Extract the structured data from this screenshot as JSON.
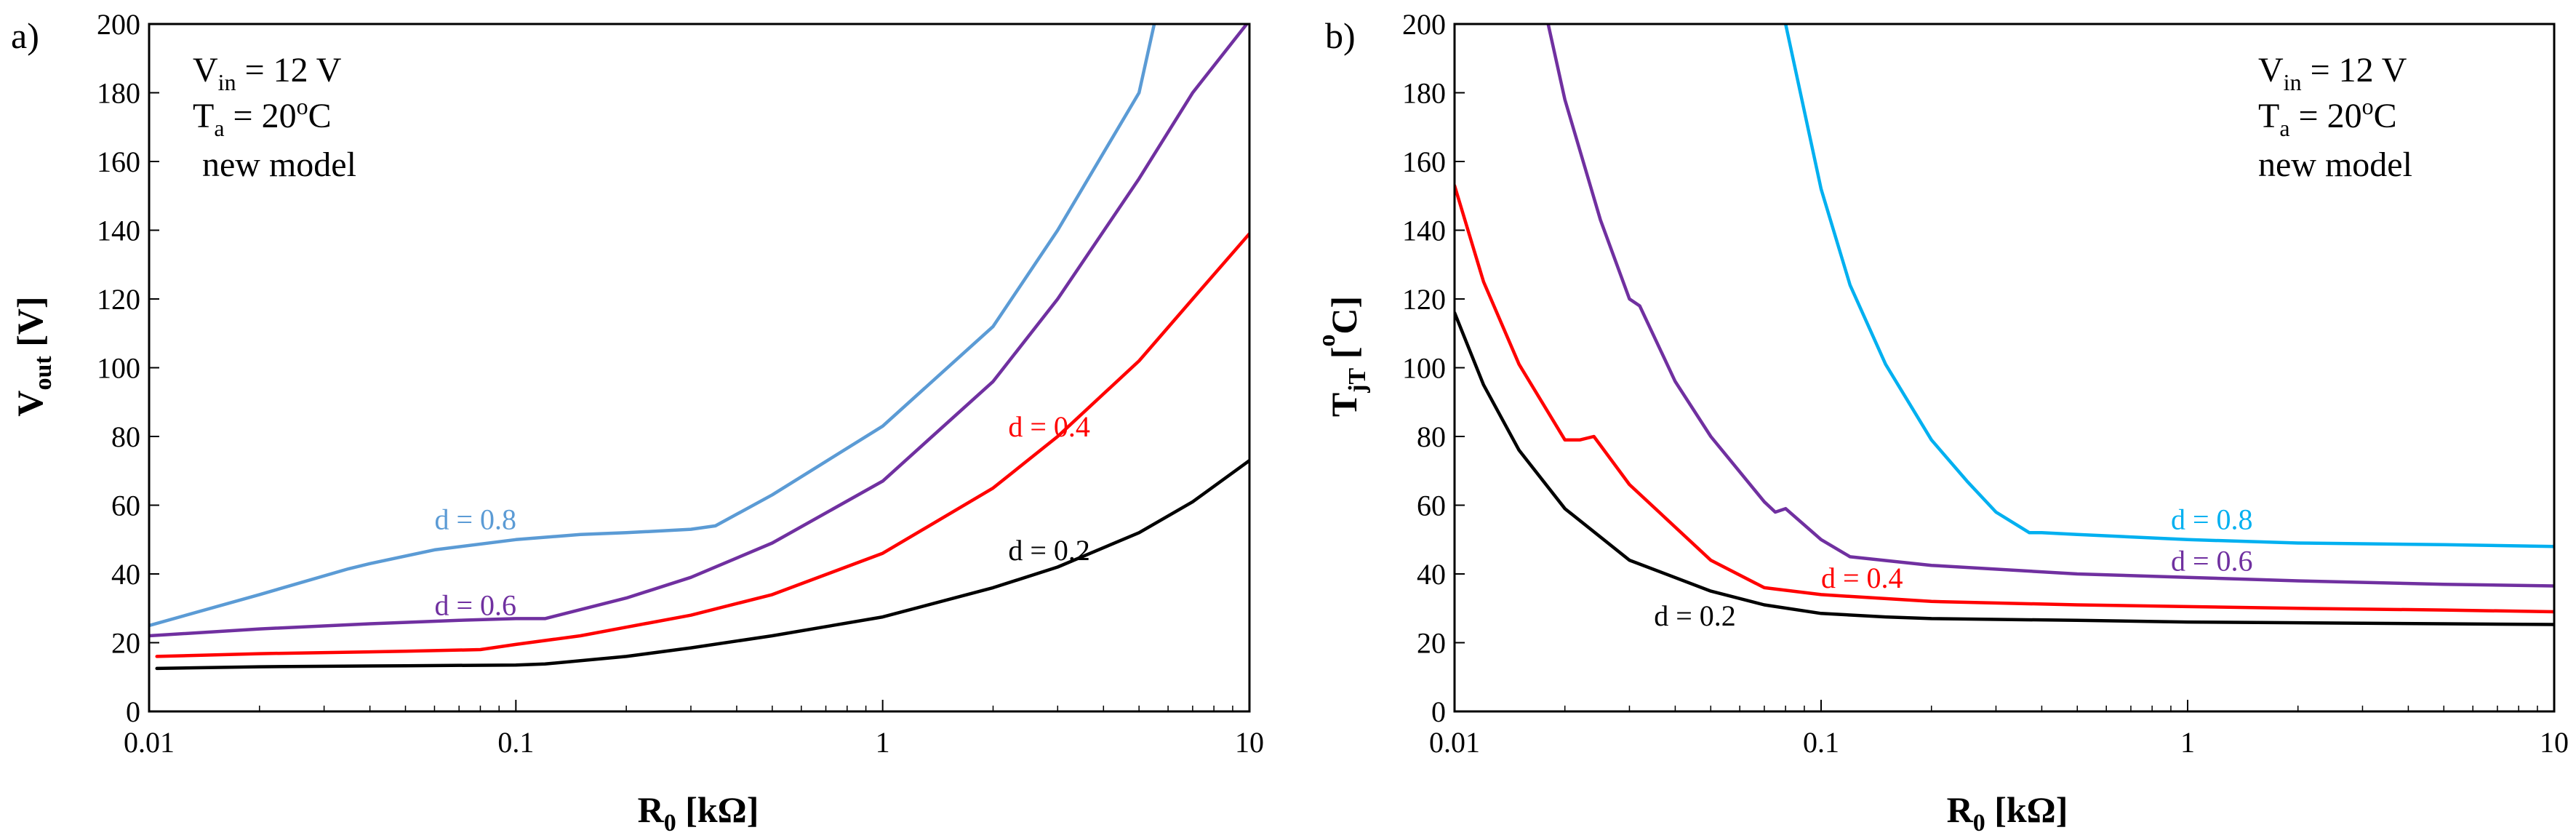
{
  "chart_data": [
    {
      "type": "line",
      "panel_label": "a)",
      "xscale": "log",
      "xlim": [
        0.01,
        10
      ],
      "ylim": [
        0,
        200
      ],
      "xticks": [
        0.01,
        0.1,
        1,
        10
      ],
      "xtick_labels": [
        "0.01",
        "0.1",
        "1",
        "10"
      ],
      "yticks": [
        0,
        20,
        40,
        60,
        80,
        100,
        120,
        140,
        160,
        180,
        200
      ],
      "ytick_labels": [
        "0",
        "20",
        "40",
        "60",
        "80",
        "100",
        "120",
        "140",
        "160",
        "180",
        "200"
      ],
      "xlabel": {
        "main": "R",
        "sub": "0",
        "rest": " [kΩ]"
      },
      "ylabel": {
        "main": "V",
        "sub": "out",
        "rest": " [V]"
      },
      "annotation": {
        "vin_main": "V",
        "vin_sub": "in",
        "vin_rest": " = 12 V",
        "ta_main": "T",
        "ta_sub": "a",
        "ta_rest": " = 20",
        "ta_sup": "o",
        "ta_unit": "C",
        "model": "new model",
        "placement": "top-left"
      },
      "series": [
        {
          "name": "d = 0.2",
          "color": "#000000",
          "x": [
            0.0105,
            0.02,
            0.05,
            0.1,
            0.12,
            0.2,
            0.3,
            0.5,
            1,
            2,
            3,
            5,
            7,
            10
          ],
          "y": [
            12.5,
            13,
            13.3,
            13.5,
            13.8,
            16,
            18.5,
            22,
            27.5,
            36,
            42,
            52,
            61,
            73
          ]
        },
        {
          "name": "d = 0.4",
          "color": "#ff0000",
          "x": [
            0.0105,
            0.02,
            0.05,
            0.08,
            0.1,
            0.15,
            0.2,
            0.3,
            0.5,
            1,
            2,
            3,
            5,
            7,
            10
          ],
          "y": [
            16,
            16.8,
            17.5,
            18,
            19.5,
            22,
            24.5,
            28,
            34,
            46,
            65,
            80,
            102,
            120,
            139
          ]
        },
        {
          "name": "d = 0.6",
          "color": "#7030a0",
          "x": [
            0.01,
            0.02,
            0.04,
            0.07,
            0.1,
            0.12,
            0.2,
            0.3,
            0.5,
            1,
            2,
            3,
            5,
            7,
            10
          ],
          "y": [
            22,
            24,
            25.5,
            26.5,
            27,
            27,
            33,
            39,
            49,
            67,
            96,
            120,
            155,
            180,
            201
          ]
        },
        {
          "name": "d = 0.8",
          "color": "#5b9bd5",
          "x": [
            0.01,
            0.02,
            0.035,
            0.04,
            0.06,
            0.1,
            0.15,
            0.2,
            0.3,
            0.35,
            0.5,
            1,
            2,
            3,
            5,
            5.5
          ],
          "y": [
            25,
            34,
            41.5,
            43,
            47,
            50,
            51.5,
            52,
            53,
            54,
            63,
            83,
            112,
            140,
            180,
            200
          ]
        }
      ],
      "curve_labels": [
        {
          "text": "d = 0.8",
          "series": 3,
          "x": 0.06,
          "y": 53,
          "color": "#5b9bd5"
        },
        {
          "text": "d = 0.6",
          "series": 2,
          "x": 0.06,
          "y": 28,
          "color": "#7030a0"
        },
        {
          "text": "d = 0.4",
          "series": 1,
          "x": 2.2,
          "y": 80,
          "color": "#ff0000"
        },
        {
          "text": "d = 0.2",
          "series": 0,
          "x": 2.2,
          "y": 44,
          "color": "#000000"
        }
      ]
    },
    {
      "type": "line",
      "panel_label": "b)",
      "xscale": "log",
      "xlim": [
        0.01,
        10
      ],
      "ylim": [
        0,
        200
      ],
      "xticks": [
        0.01,
        0.1,
        1,
        10
      ],
      "xtick_labels": [
        "0.01",
        "0.1",
        "1",
        "10"
      ],
      "yticks": [
        0,
        20,
        40,
        60,
        80,
        100,
        120,
        140,
        160,
        180,
        200
      ],
      "ytick_labels": [
        "0",
        "20",
        "40",
        "60",
        "80",
        "100",
        "120",
        "140",
        "160",
        "180",
        "200"
      ],
      "xlabel": {
        "main": "R",
        "sub": "0",
        "rest": " [kΩ]"
      },
      "ylabel": {
        "main": "T",
        "sub": "jT",
        "rest": " [",
        "sup": "o",
        "unit": "C]"
      },
      "annotation": {
        "vin_main": "V",
        "vin_sub": "in",
        "vin_rest": " = 12 V",
        "ta_main": "T",
        "ta_sub": "a",
        "ta_rest": " = 20",
        "ta_sup": "o",
        "ta_unit": "C",
        "model": "new model",
        "placement": "top-right"
      },
      "series": [
        {
          "name": "d = 0.2",
          "color": "#000000",
          "x": [
            0.01,
            0.012,
            0.015,
            0.02,
            0.03,
            0.05,
            0.07,
            0.1,
            0.15,
            0.2,
            0.5,
            1,
            2,
            5,
            10
          ],
          "y": [
            116,
            95,
            76,
            59,
            44,
            35,
            31,
            28.5,
            27.5,
            27,
            26.5,
            26,
            25.8,
            25.5,
            25.3
          ]
        },
        {
          "name": "d = 0.4",
          "color": "#ff0000",
          "x": [
            0.01,
            0.012,
            0.015,
            0.02,
            0.022,
            0.024,
            0.03,
            0.05,
            0.07,
            0.1,
            0.2,
            0.5,
            1,
            2,
            5,
            10
          ],
          "y": [
            153,
            125,
            101,
            79,
            79,
            80,
            66,
            44,
            36,
            34,
            32,
            31,
            30.5,
            30,
            29.5,
            29
          ]
        },
        {
          "name": "d = 0.6",
          "color": "#7030a0",
          "x": [
            0.018,
            0.02,
            0.025,
            0.03,
            0.032,
            0.04,
            0.05,
            0.07,
            0.075,
            0.08,
            0.1,
            0.12,
            0.2,
            0.5,
            1,
            2,
            5,
            10
          ],
          "y": [
            200,
            178,
            143,
            120,
            118,
            96,
            80,
            61,
            58,
            59,
            50,
            45,
            42.5,
            40,
            39,
            38,
            37,
            36.5
          ]
        },
        {
          "name": "d = 0.8",
          "color": "#00b0f0",
          "x": [
            0.08,
            0.1,
            0.12,
            0.15,
            0.2,
            0.25,
            0.3,
            0.37,
            0.4,
            0.5,
            1,
            2,
            5,
            10
          ],
          "y": [
            200,
            152,
            124,
            101,
            79,
            67,
            58,
            52,
            52,
            51.5,
            50,
            49,
            48.5,
            48
          ]
        }
      ],
      "curve_labels": [
        {
          "text": "d = 0.8",
          "series": 3,
          "x": 0.9,
          "y": 53,
          "color": "#00b0f0"
        },
        {
          "text": "d = 0.6",
          "series": 2,
          "x": 0.9,
          "y": 41,
          "color": "#7030a0"
        },
        {
          "text": "d = 0.4",
          "series": 1,
          "x": 0.1,
          "y": 36,
          "color": "#ff0000"
        },
        {
          "text": "d = 0.2",
          "series": 0,
          "x": 0.035,
          "y": 25,
          "color": "#000000"
        }
      ]
    }
  ]
}
